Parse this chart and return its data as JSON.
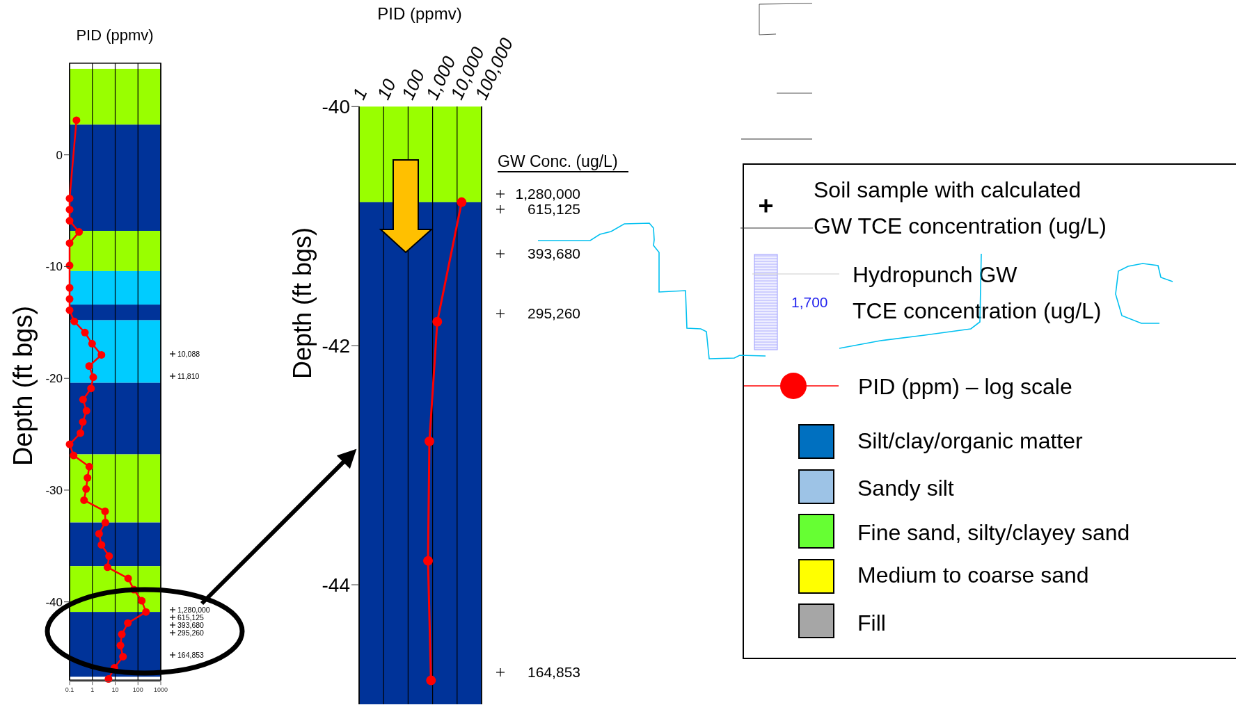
{
  "chart_data": [
    {
      "type": "line",
      "xlabel": "PID (ppmv)",
      "ylabel": "Depth (ft bgs)",
      "log": "x",
      "xlim": [
        0.1,
        1000
      ],
      "xticks": [
        0.1,
        1,
        10,
        100,
        1000
      ],
      "ylim": [
        -47,
        8.2
      ],
      "yticks": [
        0,
        -10,
        -20,
        -30,
        -40
      ],
      "grid": "x",
      "marker": "circle",
      "line_style": "solid",
      "series": [
        {
          "color": "#ff0000",
          "x": [
            0.2,
            0.1,
            0.1,
            0.1,
            0.26,
            0.1,
            0.1,
            0.1,
            0.1,
            0.1,
            0.16,
            0.47,
            0.97,
            2.5,
            0.72,
            1.09,
            0.87,
            0.39,
            0.55,
            0.38,
            0.3,
            0.1,
            0.15,
            0.73,
            0.61,
            0.53,
            0.43,
            3.6,
            3.7,
            1.96,
            2.5,
            5.4,
            4.6,
            37,
            66,
            147,
            224,
            36,
            19.5,
            17,
            22,
            9.2,
            5.1
          ],
          "values": [
            3.1,
            -3.9,
            -4.9,
            -5.9,
            -6.9,
            -7.9,
            -9.9,
            -11.9,
            -12.9,
            -13.9,
            -14.9,
            -15.9,
            -16.9,
            -17.9,
            -18.9,
            -19.9,
            -20.9,
            -21.9,
            -22.9,
            -23.9,
            -24.9,
            -25.9,
            -26.9,
            -27.9,
            -28.9,
            -29.9,
            -30.9,
            -31.9,
            -32.9,
            -33.9,
            -34.9,
            -35.9,
            -36.9,
            -37.9,
            -38.9,
            -39.9,
            -40.9,
            -41.9,
            -42.9,
            -43.9,
            -44.9,
            -45.9,
            -46.9
          ]
        }
      ],
      "bands": [
        {
          "axis": "y",
          "from": 7.7,
          "to": 2.7,
          "color": "#99ff00"
        },
        {
          "axis": "y",
          "from": 2.7,
          "to": -6.8,
          "color": "#003399"
        },
        {
          "axis": "y",
          "from": -6.8,
          "to": -10.4,
          "color": "#99ff00"
        },
        {
          "axis": "y",
          "from": -10.4,
          "to": -13.4,
          "color": "#00ccff"
        },
        {
          "axis": "y",
          "from": -13.4,
          "to": -14.8,
          "color": "#003399"
        },
        {
          "axis": "y",
          "from": -14.8,
          "to": -20.4,
          "color": "#00ccff"
        },
        {
          "axis": "y",
          "from": -20.4,
          "to": -26.8,
          "color": "#003399"
        },
        {
          "axis": "y",
          "from": -26.8,
          "to": -32.9,
          "color": "#99ff00"
        },
        {
          "axis": "y",
          "from": -32.9,
          "to": -36.8,
          "color": "#003399"
        },
        {
          "axis": "y",
          "from": -36.8,
          "to": -40.9,
          "color": "#99ff00"
        },
        {
          "axis": "y",
          "from": -40.9,
          "to": -46.7,
          "color": "#003399"
        }
      ],
      "annotations": [
        "10,088",
        "11,810",
        "1,280,000",
        "615,125",
        "393,680",
        "295,260",
        "164,853"
      ]
    },
    {
      "type": "line",
      "xlabel": "PID (ppmv)",
      "ylabel": "Depth (ft bgs)",
      "log": "x",
      "xlim": [
        1,
        100000
      ],
      "xticks": [
        1,
        10,
        100,
        {
          "value": 1000,
          "label": "1,000"
        },
        {
          "value": 10000,
          "label": "10,000"
        },
        {
          "value": 100000,
          "label": "100,000"
        }
      ],
      "ylim": [
        -45,
        -40
      ],
      "yticks": [
        -40,
        -42,
        -44
      ],
      "grid": "x",
      "marker": "circle",
      "line_style": "solid",
      "series": [
        {
          "color": "#ff0000",
          "x": [
            15300,
            1550,
            740,
            650,
            860
          ],
          "values": [
            -40.8,
            -41.8,
            -42.8,
            -43.8,
            -44.8
          ]
        }
      ],
      "bands": [
        {
          "axis": "y",
          "from": -40,
          "to": -40.8,
          "color": "#99ff00"
        },
        {
          "axis": "y",
          "from": -40.8,
          "to": -45,
          "color": "#003399"
        }
      ],
      "annotations": [
        "GW Conc. (ug/L)",
        "1,280,000",
        "615,125",
        "393,680",
        "295,260",
        "164,853"
      ]
    },
    {
      "type": "other",
      "annotations": [
        "Soil sample with calculated GW TCE concentration (ug/L)",
        "Hydropunch GW TCE concentration (ug/L)",
        "1,700",
        "PID (ppm) – log scale",
        "Silt/clay/organic matter",
        "Sandy silt",
        "Fine sand, silty/clayey sand",
        "Medium to coarse sand",
        "Fill"
      ]
    }
  ]
}
